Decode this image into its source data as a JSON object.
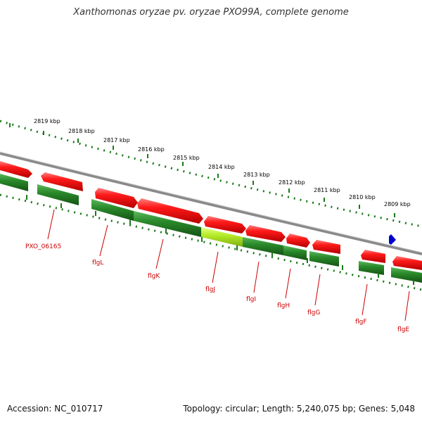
{
  "title": "Xanthomonas oryzae pv. oryzae PXO99A, complete genome",
  "footer": {
    "accession": "Accession: NC_010717",
    "stats": "Topology: circular; Length: 5,240,075 bp; Genes: 5,048"
  },
  "colors": {
    "forward_strand": "#e60000",
    "reverse_strand": "#1e7a1e",
    "highlighted_gene": "#a8e020",
    "backbone": "#888888",
    "ruler": "#1a7a1a",
    "label": "#cc0000",
    "marker": "#0000cc"
  },
  "ruler": {
    "unit": "kbp",
    "labels": [
      "2819 kbp",
      "2818 kbp",
      "2817 kbp",
      "2816 kbp",
      "2815 kbp",
      "2814 kbp",
      "2813 kbp",
      "2812 kbp",
      "2811 kbp",
      "2810 kbp",
      "2809 kbp"
    ]
  },
  "genes": [
    "PXO_06165",
    "flgL",
    "flgK",
    "flgJ",
    "flgI",
    "flgH",
    "flgG",
    "flgF",
    "flgE"
  ],
  "marker_icon": "position-marker-icon"
}
